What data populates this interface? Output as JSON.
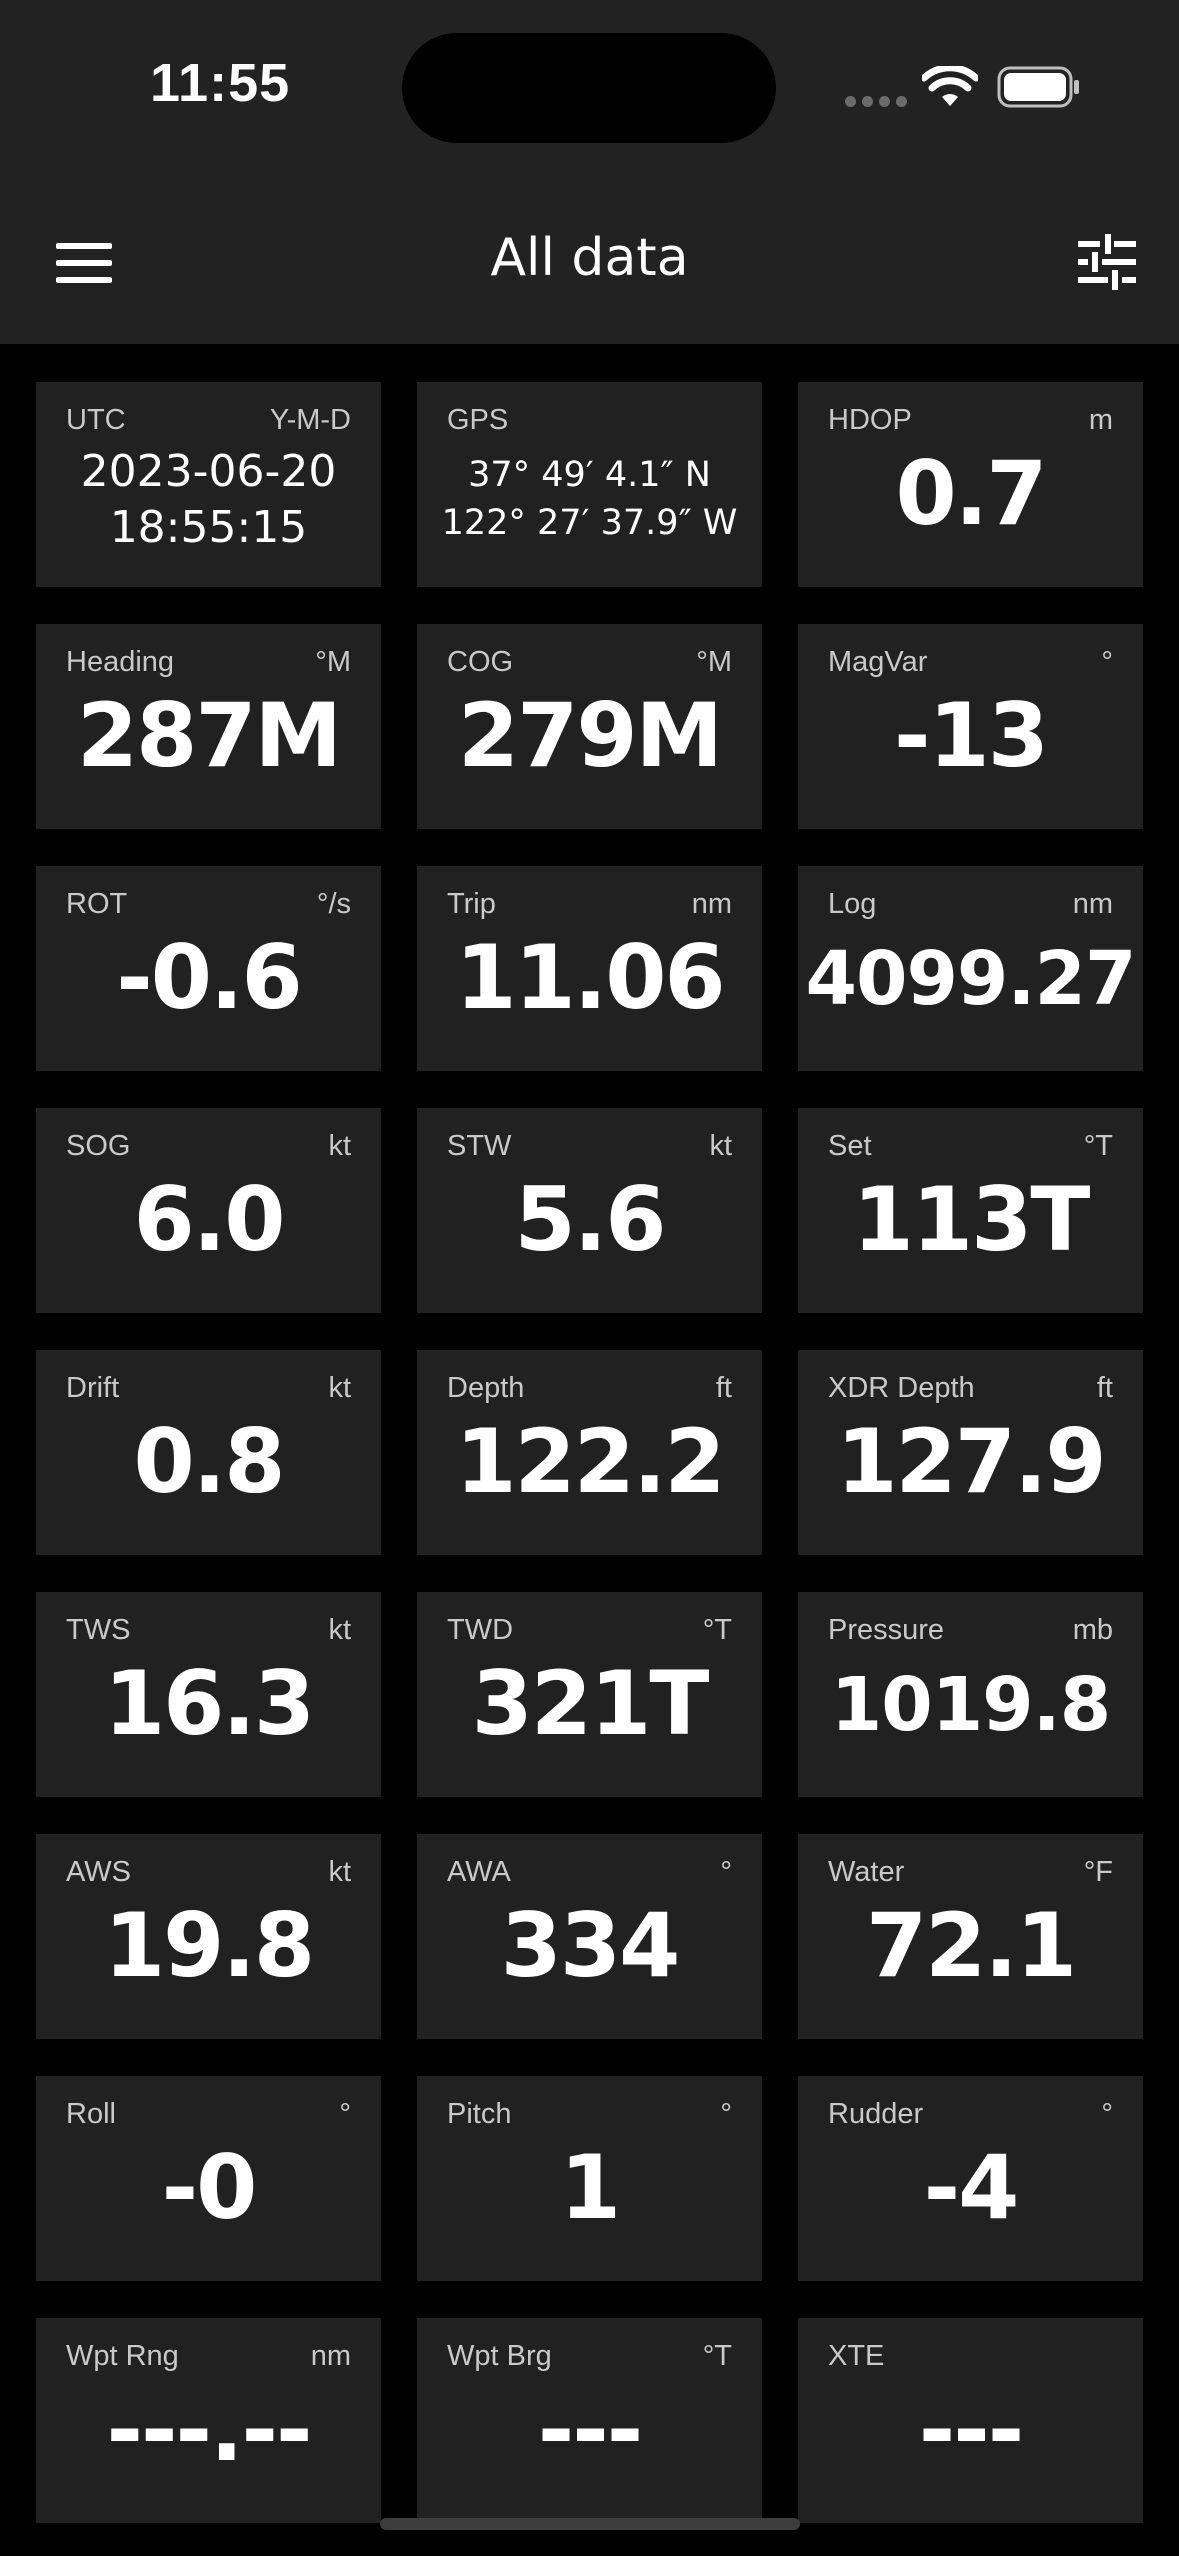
{
  "status": {
    "time": "11:55"
  },
  "header": {
    "title": "All data"
  },
  "tiles": [
    {
      "label": "Heading",
      "unit": "°M",
      "value": "287M"
    },
    {
      "label": "COG",
      "unit": "°M",
      "value": "279M"
    },
    {
      "label": "MagVar",
      "unit": "°",
      "value": "-13"
    },
    {
      "label": "ROT",
      "unit": "°/s",
      "value": "-0.6"
    },
    {
      "label": "Trip",
      "unit": "nm",
      "value": "11.06"
    },
    {
      "label": "Log",
      "unit": "nm",
      "value": "4099.27"
    },
    {
      "label": "SOG",
      "unit": "kt",
      "value": "6.0"
    },
    {
      "label": "STW",
      "unit": "kt",
      "value": "5.6"
    },
    {
      "label": "Set",
      "unit": "°T",
      "value": "113T"
    },
    {
      "label": "Drift",
      "unit": "kt",
      "value": "0.8"
    },
    {
      "label": "Depth",
      "unit": "ft",
      "value": "122.2"
    },
    {
      "label": "XDR Depth",
      "unit": "ft",
      "value": "127.9"
    },
    {
      "label": "TWS",
      "unit": "kt",
      "value": "16.3"
    },
    {
      "label": "TWD",
      "unit": "°T",
      "value": "321T"
    },
    {
      "label": "Pressure",
      "unit": "mb",
      "value": "1019.8"
    },
    {
      "label": "AWS",
      "unit": "kt",
      "value": "19.8"
    },
    {
      "label": "AWA",
      "unit": "°",
      "value": "334"
    },
    {
      "label": "Water",
      "unit": "°F",
      "value": "72.1"
    },
    {
      "label": "Roll",
      "unit": "°",
      "value": "-0"
    },
    {
      "label": "Pitch",
      "unit": "°",
      "value": "1"
    },
    {
      "label": "Rudder",
      "unit": "°",
      "value": "-4"
    },
    {
      "label": "Wpt Rng",
      "unit": "nm",
      "value": "---.--"
    },
    {
      "label": "Wpt Brg",
      "unit": "°T",
      "value": "---"
    },
    {
      "label": "XTE",
      "unit": "",
      "value": "---"
    }
  ],
  "utc": {
    "label": "UTC",
    "unit": "Y-M-D",
    "date": "2023-06-20",
    "time": "18:55:15"
  },
  "gps": {
    "label": "GPS",
    "lat": "37° 49′ 4.1″ N",
    "lon": "122° 27′ 37.9″ W"
  },
  "hdop": {
    "label": "HDOP",
    "unit": "m",
    "value": "0.7"
  }
}
